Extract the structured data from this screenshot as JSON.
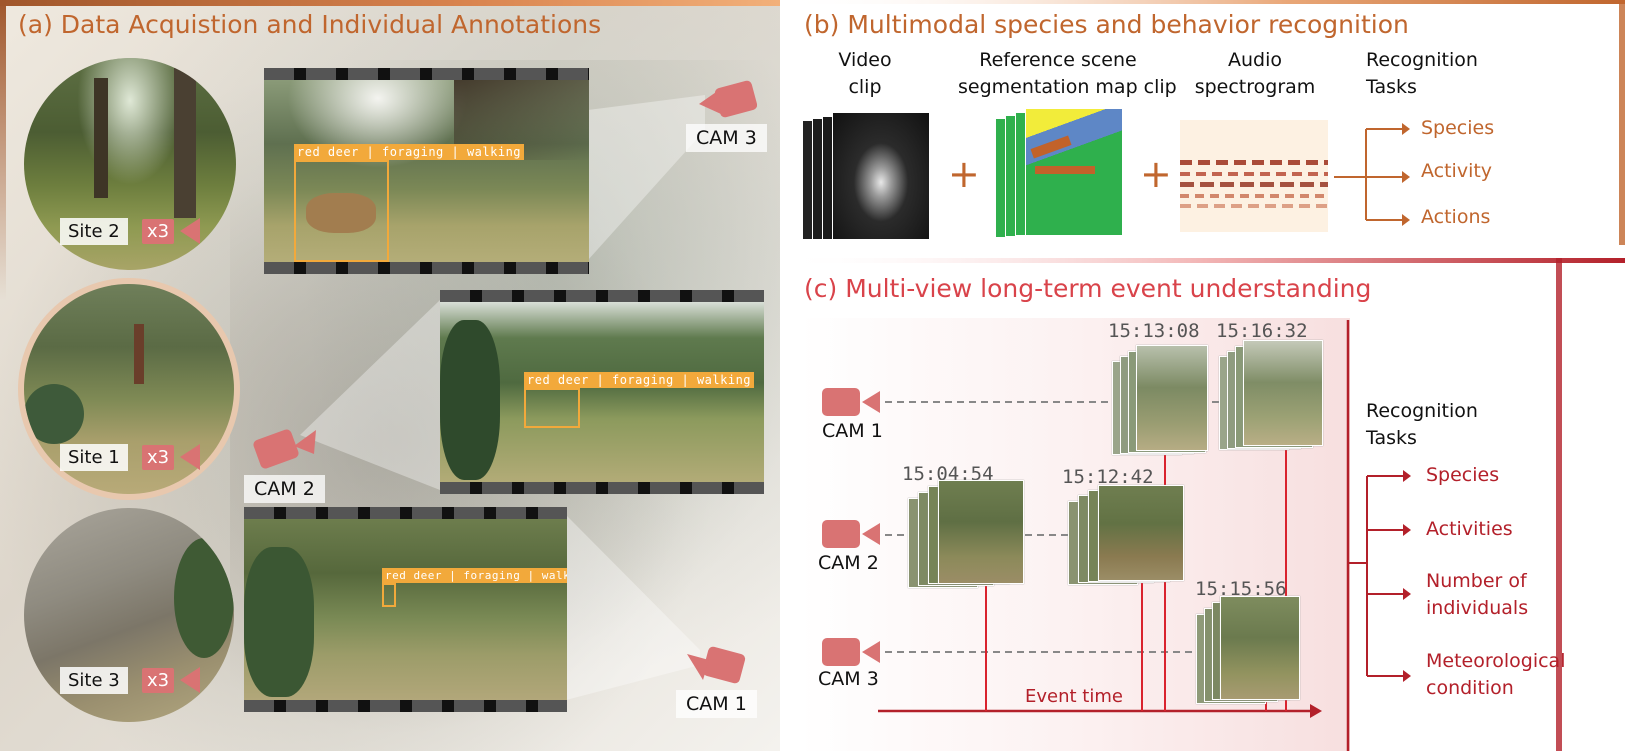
{
  "panel_a": {
    "title": "(a) Data Acquistion and Individual Annotations",
    "sites": [
      {
        "label": "Site 2",
        "count": "x3"
      },
      {
        "label": "Site 1",
        "count": "x3"
      },
      {
        "label": "Site 3",
        "count": "x3"
      }
    ],
    "cams": [
      "CAM 3",
      "CAM 2",
      "CAM 1"
    ],
    "annotation": "red deer | foraging | walking"
  },
  "panel_b": {
    "title": "(b) Multimodal species and behavior recognition",
    "inputs": [
      {
        "line1": "Video",
        "line2": "clip"
      },
      {
        "line1": "Reference scene",
        "line2": "segmentation map clip"
      },
      {
        "line1": "Audio",
        "line2": "spectrogram"
      }
    ],
    "plus": "+",
    "tasks_title_1": "Recognition",
    "tasks_title_2": "Tasks",
    "tasks": [
      "Species",
      "Activity",
      "Actions"
    ]
  },
  "panel_c": {
    "title": "(c) Multi-view long-term event understanding",
    "cams": [
      "CAM 1",
      "CAM 2",
      "CAM 3"
    ],
    "timestamps": [
      "15:13:08",
      "15:16:32",
      "15:04:54",
      "15:12:42",
      "15:15:56"
    ],
    "axis_label": "Event time",
    "tasks_title_1": "Recognition",
    "tasks_title_2": "Tasks",
    "tasks": [
      {
        "line1": "Species",
        "line2": ""
      },
      {
        "line1": "Activities",
        "line2": ""
      },
      {
        "line1": "Number of",
        "line2": "individuals"
      },
      {
        "line1": "Meteorological",
        "line2": "condition"
      }
    ]
  },
  "colors": {
    "orange": "#c0662e",
    "red": "#b3202a",
    "cam_pink": "#d97373",
    "annotation": "#f2a93b"
  }
}
